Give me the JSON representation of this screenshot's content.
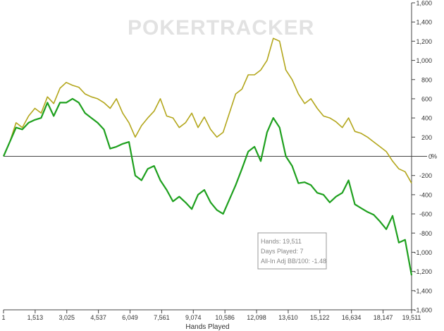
{
  "watermark": {
    "part1": "POKER",
    "part2": "TRACKER"
  },
  "chart_data": {
    "type": "line",
    "xlabel": "Hands Played",
    "ylabel": "",
    "y_unit": "%",
    "xlim": [
      1,
      19511
    ],
    "ylim": [
      -1600,
      1600
    ],
    "x_ticks": [
      "1",
      "1,513",
      "3,025",
      "4,537",
      "6,049",
      "7,561",
      "9,074",
      "10,586",
      "12,098",
      "13,610",
      "15,122",
      "16,634",
      "18,147",
      "19,511"
    ],
    "y_ticks": [
      "1,600",
      "1,400",
      "1,200",
      "1,000",
      "800",
      "600",
      "400",
      "200",
      "0",
      "-200",
      "-400",
      "-600",
      "-800",
      "-1,000",
      "-1,200",
      "-1,400",
      "-1,600"
    ],
    "grid": false,
    "colors": {
      "series_1": "#1ea01e",
      "series_2": "#b3a61b",
      "zero_line": "#444444"
    },
    "series": [
      {
        "values": [
          [
            1,
            0
          ],
          [
            300,
            150
          ],
          [
            600,
            300
          ],
          [
            900,
            280
          ],
          [
            1200,
            350
          ],
          [
            1500,
            380
          ],
          [
            1800,
            400
          ],
          [
            2100,
            560
          ],
          [
            2400,
            420
          ],
          [
            2700,
            560
          ],
          [
            3000,
            560
          ],
          [
            3300,
            600
          ],
          [
            3600,
            560
          ],
          [
            3900,
            450
          ],
          [
            4200,
            400
          ],
          [
            4500,
            350
          ],
          [
            4800,
            280
          ],
          [
            5100,
            80
          ],
          [
            5400,
            100
          ],
          [
            5700,
            130
          ],
          [
            6000,
            150
          ],
          [
            6300,
            -200
          ],
          [
            6600,
            -250
          ],
          [
            6900,
            -130
          ],
          [
            7200,
            -100
          ],
          [
            7500,
            -250
          ],
          [
            7800,
            -350
          ],
          [
            8100,
            -470
          ],
          [
            8400,
            -420
          ],
          [
            8700,
            -480
          ],
          [
            9000,
            -550
          ],
          [
            9300,
            -400
          ],
          [
            9600,
            -350
          ],
          [
            9900,
            -480
          ],
          [
            10200,
            -560
          ],
          [
            10500,
            -600
          ],
          [
            10800,
            -450
          ],
          [
            11100,
            -300
          ],
          [
            11400,
            -130
          ],
          [
            11700,
            50
          ],
          [
            12000,
            100
          ],
          [
            12300,
            -50
          ],
          [
            12600,
            250
          ],
          [
            12900,
            400
          ],
          [
            13200,
            300
          ],
          [
            13500,
            0
          ],
          [
            13800,
            -100
          ],
          [
            14100,
            -280
          ],
          [
            14400,
            -270
          ],
          [
            14700,
            -300
          ],
          [
            15000,
            -380
          ],
          [
            15300,
            -400
          ],
          [
            15600,
            -480
          ],
          [
            15900,
            -420
          ],
          [
            16200,
            -380
          ],
          [
            16500,
            -250
          ],
          [
            16800,
            -500
          ],
          [
            17100,
            -540
          ],
          [
            17400,
            -580
          ],
          [
            17700,
            -610
          ],
          [
            18000,
            -680
          ],
          [
            18300,
            -760
          ],
          [
            18600,
            -620
          ],
          [
            18900,
            -900
          ],
          [
            19200,
            -870
          ],
          [
            19511,
            -1240
          ]
        ]
      },
      {
        "values": [
          [
            1,
            0
          ],
          [
            300,
            150
          ],
          [
            600,
            350
          ],
          [
            900,
            300
          ],
          [
            1200,
            420
          ],
          [
            1500,
            500
          ],
          [
            1800,
            450
          ],
          [
            2100,
            620
          ],
          [
            2400,
            550
          ],
          [
            2700,
            710
          ],
          [
            3000,
            770
          ],
          [
            3300,
            740
          ],
          [
            3600,
            720
          ],
          [
            3900,
            650
          ],
          [
            4200,
            620
          ],
          [
            4500,
            600
          ],
          [
            4800,
            560
          ],
          [
            5100,
            500
          ],
          [
            5400,
            600
          ],
          [
            5700,
            450
          ],
          [
            6000,
            350
          ],
          [
            6300,
            200
          ],
          [
            6600,
            320
          ],
          [
            6900,
            400
          ],
          [
            7200,
            470
          ],
          [
            7500,
            600
          ],
          [
            7800,
            420
          ],
          [
            8100,
            400
          ],
          [
            8400,
            300
          ],
          [
            8700,
            350
          ],
          [
            9000,
            450
          ],
          [
            9300,
            300
          ],
          [
            9600,
            410
          ],
          [
            9900,
            280
          ],
          [
            10200,
            200
          ],
          [
            10500,
            250
          ],
          [
            10800,
            450
          ],
          [
            11100,
            650
          ],
          [
            11400,
            700
          ],
          [
            11700,
            850
          ],
          [
            12000,
            850
          ],
          [
            12300,
            900
          ],
          [
            12600,
            1000
          ],
          [
            12900,
            1230
          ],
          [
            13200,
            1200
          ],
          [
            13500,
            900
          ],
          [
            13800,
            800
          ],
          [
            14100,
            650
          ],
          [
            14400,
            550
          ],
          [
            14700,
            600
          ],
          [
            15000,
            500
          ],
          [
            15300,
            420
          ],
          [
            15600,
            400
          ],
          [
            15900,
            360
          ],
          [
            16200,
            300
          ],
          [
            16500,
            400
          ],
          [
            16800,
            260
          ],
          [
            17100,
            240
          ],
          [
            17400,
            200
          ],
          [
            17700,
            150
          ],
          [
            18000,
            100
          ],
          [
            18300,
            50
          ],
          [
            18600,
            -50
          ],
          [
            18900,
            -130
          ],
          [
            19200,
            -160
          ],
          [
            19511,
            -280
          ]
        ]
      }
    ]
  },
  "info_box": {
    "hands": "Hands: 19,511",
    "days": "Days Played: 7",
    "adj": "All-In Adj BB/100: -1.48"
  }
}
